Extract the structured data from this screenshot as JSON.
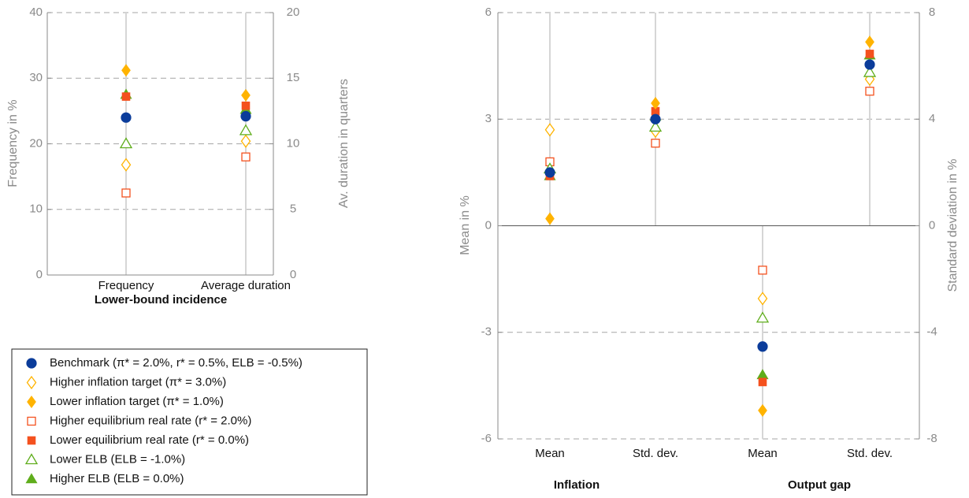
{
  "colors": {
    "benchmark": "#0b3c9a",
    "orange": "#ffb300",
    "red": "#f4511e",
    "green": "#5fad1b",
    "axis": "#8a8a8a",
    "grid": "#a6a6a6",
    "stem": "#d6d6d6"
  },
  "legend": {
    "items": [
      {
        "label": "Benchmark (π* = 2.0%, r* = 0.5%,  ELB = -0.5%)",
        "marker": "circle",
        "filled": true,
        "color": "#0b3c9a"
      },
      {
        "label": "Higher inflation target (π* = 3.0%)",
        "marker": "diamond",
        "filled": false,
        "color": "#ffb300"
      },
      {
        "label": "Lower inflation target (π* = 1.0%)",
        "marker": "diamond",
        "filled": true,
        "color": "#ffb300"
      },
      {
        "label": "Higher equilibrium real rate (r* = 2.0%)",
        "marker": "square",
        "filled": false,
        "color": "#f4511e"
      },
      {
        "label": "Lower equilibrium real rate (r* = 0.0%)",
        "marker": "square",
        "filled": true,
        "color": "#f4511e"
      },
      {
        "label": "Lower ELB (ELB = -1.0%)",
        "marker": "triangle",
        "filled": false,
        "color": "#5fad1b"
      },
      {
        "label": "Higher ELB (ELB =  0.0%)",
        "marker": "triangle",
        "filled": true,
        "color": "#5fad1b"
      }
    ]
  },
  "chart_data": [
    {
      "type": "scatter",
      "title": "Lower-bound incidence",
      "categories": [
        "Frequency",
        "Average duration"
      ],
      "ylabel_left": "Frequency in %",
      "ylabel_right": "Av. duration in quarters",
      "ylim_left": [
        0,
        40
      ],
      "ylim_right": [
        0,
        20
      ],
      "yticks_left": [
        0,
        10,
        20,
        30,
        40
      ],
      "yticks_right": [
        0,
        5,
        10,
        15,
        20
      ],
      "grid": "horizontal dashed",
      "series": [
        {
          "name": "Benchmark (π* = 2.0%, r* = 0.5%,  ELB = -0.5%)",
          "values": [
            24.0,
            12.1
          ]
        },
        {
          "name": "Higher inflation target (π* = 3.0%)",
          "values": [
            16.8,
            10.2
          ]
        },
        {
          "name": "Lower inflation target (π* = 1.0%)",
          "values": [
            31.2,
            13.7
          ]
        },
        {
          "name": "Higher equilibrium real rate (r* = 2.0%)",
          "values": [
            12.5,
            9.0
          ]
        },
        {
          "name": "Lower equilibrium real rate (r* = 0.0%)",
          "values": [
            27.2,
            12.9
          ]
        },
        {
          "name": "Lower ELB (ELB = -1.0%)",
          "values": [
            20.0,
            11.0
          ]
        },
        {
          "name": "Higher ELB (ELB =  0.0%)",
          "values": [
            27.5,
            12.6
          ]
        }
      ]
    },
    {
      "type": "scatter",
      "group_titles": [
        "Inflation",
        "Output gap"
      ],
      "categories": [
        "Mean",
        "Std. dev.",
        "Mean",
        "Std. dev."
      ],
      "ylabel_left": "Mean in %",
      "ylabel_right": "Standard deviation in %",
      "ylim_left": [
        -6,
        6
      ],
      "ylim_right": [
        -8,
        8
      ],
      "yticks_left": [
        -6,
        -3,
        0,
        3,
        6
      ],
      "yticks_right": [
        -8,
        -4,
        0,
        4,
        8
      ],
      "grid": "horizontal dashed",
      "series": [
        {
          "name": "Benchmark (π* = 2.0%, r* = 0.5%,  ELB = -0.5%)",
          "values": [
            1.5,
            4.0,
            -3.4,
            6.05
          ]
        },
        {
          "name": "Higher inflation target (π* = 3.0%)",
          "values": [
            2.7,
            3.55,
            -2.05,
            5.5
          ]
        },
        {
          "name": "Lower inflation target (π* = 1.0%)",
          "values": [
            0.2,
            4.6,
            -5.2,
            6.9
          ]
        },
        {
          "name": "Higher equilibrium real rate (r* = 2.0%)",
          "values": [
            1.8,
            3.1,
            -1.25,
            5.05
          ]
        },
        {
          "name": "Lower equilibrium real rate (r* = 0.0%)",
          "values": [
            1.4,
            4.3,
            -4.4,
            6.45
          ]
        },
        {
          "name": "Lower ELB (ELB = -1.0%)",
          "values": [
            1.6,
            3.7,
            -2.6,
            5.75
          ]
        },
        {
          "name": "Higher ELB (ELB =  0.0%)",
          "values": [
            1.4,
            4.1,
            -4.2,
            6.4
          ]
        }
      ]
    }
  ]
}
